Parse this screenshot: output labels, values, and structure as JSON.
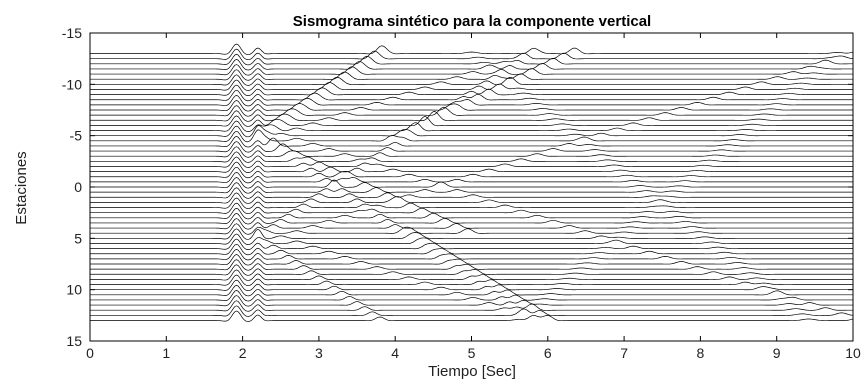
{
  "chart_data": {
    "type": "line",
    "title": "Sismograma sintético para la componente vertical",
    "xlabel": "Tiempo [Sec]",
    "ylabel": "Estaciones",
    "xlim": [
      0,
      10
    ],
    "ylim": [
      -15,
      15
    ],
    "y_reversed": true,
    "grid": false,
    "line_color": "#000000",
    "x_ticks": [
      "0",
      "1",
      "2",
      "3",
      "4",
      "5",
      "6",
      "7",
      "8",
      "9",
      "10"
    ],
    "y_ticks": [
      "-15",
      "-10",
      "-5",
      "0",
      "5",
      "10",
      "15"
    ],
    "series_description": "One seismogram trace per station, offset vertically by station index",
    "stations": {
      "first": -13,
      "last": 13,
      "step": 0.5
    },
    "wave_events": [
      {
        "type": "direct",
        "t0": 1.95,
        "slope": 0,
        "amplitude": 0.9
      },
      {
        "type": "direct",
        "t0": 2.2,
        "slope": 0,
        "amplitude": 0.6
      },
      {
        "type": "moveout",
        "t_at_station_minus5": 2.3,
        "t_at_station_minus13": 3.85,
        "amplitude": 0.5
      },
      {
        "type": "moveout",
        "t_at_station_minus5": 4.1,
        "t_at_station_minus13": 6.35,
        "amplitude": 0.55
      },
      {
        "type": "moveout",
        "t_at_station_5": 4.3,
        "t_at_station_13": 6.0,
        "amplitude": 0.5
      },
      {
        "type": "moveout",
        "t_at_station_minus3": 2.7,
        "t_at_station_0": 3.6,
        "amplitude": 0.45
      }
    ]
  }
}
